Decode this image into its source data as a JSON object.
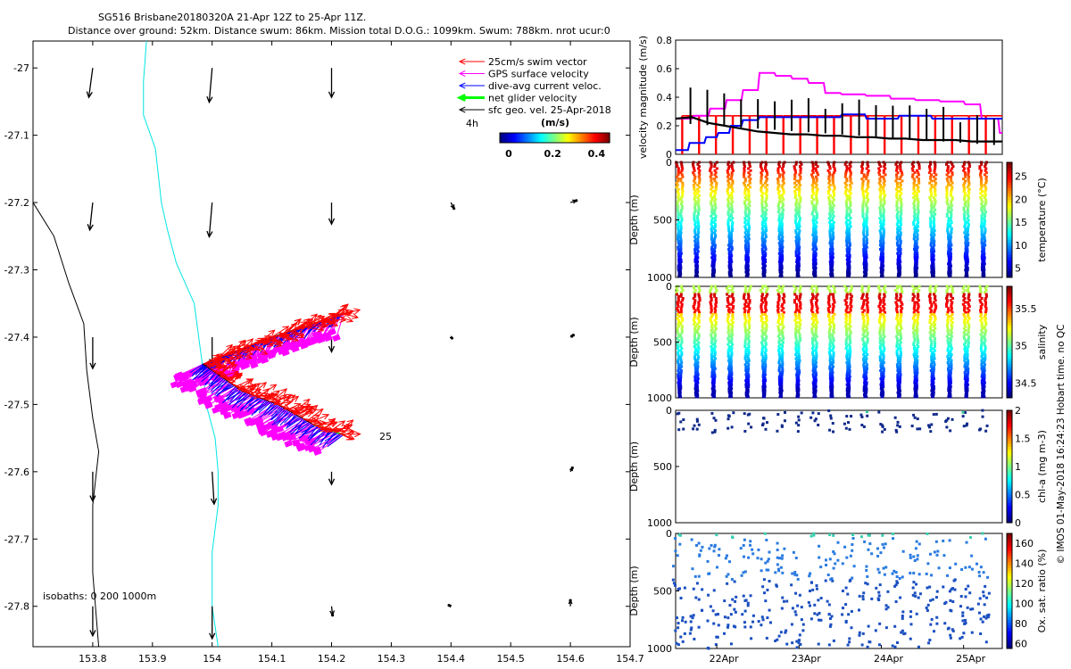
{
  "header": {
    "line1": "SG516 Brisbane20180320A 21-Apr 12Z to 25-Apr 11Z.",
    "line2": "Distance over ground: 52km. Distance swum: 86km. Mission total D.O.G.: 1099km. Swum: 788km. nrot ucur:0"
  },
  "side_note": "© IMOS 01-May-2018 16:24:23 Hobart time. no QC",
  "colors": {
    "swim": "#ff0000",
    "gps": "#ff00ff",
    "dive_avg": "#0000ff",
    "net": "#00ff00",
    "sfc": "#000000",
    "isobath_200": "#00e5e5",
    "isobath_1000": "#000000"
  },
  "chart_data": [
    {
      "id": "map",
      "type": "scatter",
      "xlim": [
        153.7,
        154.7
      ],
      "ylim": [
        -27.86,
        -26.96
      ],
      "xticks": [
        153.8,
        153.9,
        154,
        154.1,
        154.2,
        154.3,
        154.4,
        154.5,
        154.6,
        154.7
      ],
      "xtick_labels": [
        "153.8",
        "153.9",
        "154",
        "154.1",
        "154.2",
        "154.3",
        "154.4",
        "154.5",
        "154.6",
        "154.7"
      ],
      "yticks": [
        -27,
        -27.1,
        -27.2,
        -27.3,
        -27.4,
        -27.5,
        -27.6,
        -27.7,
        -27.8
      ],
      "ytick_labels": [
        "-27",
        "-27.1",
        "-27.2",
        "-27.3",
        "-27.4",
        "-27.5",
        "-27.6",
        "-27.7",
        "-27.8"
      ],
      "legend": {
        "items": [
          "25cm/s swim vector",
          "GPS surface velocity",
          "dive-avg current veloc.",
          "net glider velocity",
          "sfc geo. vel. 25-Apr-2018"
        ],
        "sub_label": "4h",
        "colorbar_title": "(m/s)",
        "colorbar_ticks": [
          0,
          0.2,
          0.4
        ],
        "colorbar_labels": [
          "0",
          "0.2",
          "0.4"
        ],
        "colorbar_range": [
          0,
          0.5
        ]
      },
      "isobaths_label": "isobaths: 0   200  1000m",
      "annotation": "25",
      "track": [
        [
          154.22,
          -27.365
        ],
        [
          154.1,
          -27.4
        ],
        [
          153.985,
          -27.44
        ],
        [
          154.05,
          -27.48
        ],
        [
          154.11,
          -27.5
        ],
        [
          154.17,
          -27.53
        ],
        [
          154.22,
          -27.545
        ]
      ],
      "isobath_200": [
        [
          153.89,
          -26.96
        ],
        [
          153.885,
          -27.02
        ],
        [
          153.885,
          -27.07
        ],
        [
          153.905,
          -27.12
        ],
        [
          153.915,
          -27.2
        ],
        [
          153.925,
          -27.24
        ],
        [
          153.94,
          -27.29
        ],
        [
          153.97,
          -27.35
        ],
        [
          153.985,
          -27.45
        ],
        [
          153.99,
          -27.5
        ],
        [
          154.005,
          -27.55
        ],
        [
          154.01,
          -27.6
        ],
        [
          154.01,
          -27.65
        ],
        [
          154.0,
          -27.72
        ],
        [
          154.0,
          -27.8
        ],
        [
          154.01,
          -27.86
        ]
      ],
      "isobath_1000": [
        [
          153.7,
          -27.2
        ],
        [
          153.735,
          -27.25
        ],
        [
          153.76,
          -27.32
        ],
        [
          153.785,
          -27.38
        ],
        [
          153.79,
          -27.45
        ],
        [
          153.8,
          -27.52
        ],
        [
          153.81,
          -27.57
        ],
        [
          153.8,
          -27.65
        ],
        [
          153.8,
          -27.75
        ],
        [
          153.81,
          -27.86
        ]
      ],
      "geo_vectors": [
        {
          "lon": 153.8,
          "lat": -27.0,
          "u": -0.04,
          "v": -0.3
        },
        {
          "lon": 154.0,
          "lat": -27.0,
          "u": -0.03,
          "v": -0.35
        },
        {
          "lon": 154.2,
          "lat": -27.0,
          "u": 0.0,
          "v": -0.3
        },
        {
          "lon": 153.8,
          "lat": -27.2,
          "u": -0.03,
          "v": -0.28
        },
        {
          "lon": 154.0,
          "lat": -27.2,
          "u": -0.03,
          "v": -0.35
        },
        {
          "lon": 154.2,
          "lat": -27.2,
          "u": 0.0,
          "v": -0.22
        },
        {
          "lon": 154.4,
          "lat": -27.2,
          "u": 0.03,
          "v": -0.06
        },
        {
          "lon": 154.6,
          "lat": -27.2,
          "u": 0.06,
          "v": 0.02
        },
        {
          "lon": 153.8,
          "lat": -27.4,
          "u": 0.0,
          "v": -0.32
        },
        {
          "lon": 154.0,
          "lat": -27.4,
          "u": 0.0,
          "v": -0.28
        },
        {
          "lon": 154.2,
          "lat": -27.4,
          "u": 0.0,
          "v": -0.15
        },
        {
          "lon": 154.4,
          "lat": -27.4,
          "u": 0.01,
          "v": -0.01
        },
        {
          "lon": 154.6,
          "lat": -27.4,
          "u": 0.03,
          "v": 0.02
        },
        {
          "lon": 153.8,
          "lat": -27.6,
          "u": 0.0,
          "v": -0.3
        },
        {
          "lon": 154.0,
          "lat": -27.6,
          "u": 0.02,
          "v": -0.33
        },
        {
          "lon": 154.2,
          "lat": -27.6,
          "u": 0.0,
          "v": -0.13
        },
        {
          "lon": 154.6,
          "lat": -27.6,
          "u": 0.02,
          "v": 0.04
        },
        {
          "lon": 153.8,
          "lat": -27.8,
          "u": 0.0,
          "v": -0.3
        },
        {
          "lon": 154.0,
          "lat": -27.8,
          "u": 0.0,
          "v": -0.33
        },
        {
          "lon": 154.2,
          "lat": -27.8,
          "u": 0.01,
          "v": -0.09
        },
        {
          "lon": 154.4,
          "lat": -27.8,
          "u": -0.02,
          "v": 0.01
        },
        {
          "lon": 154.6,
          "lat": -27.8,
          "u": 0.0,
          "v": 0.06
        }
      ]
    },
    {
      "id": "velocity",
      "type": "line",
      "ylabel": "velocity magnitude (m/s)",
      "ylim": [
        0,
        0.8
      ],
      "yticks": [
        0,
        0.2,
        0.4,
        0.6,
        0.8
      ],
      "ytick_labels": [
        "0",
        "0.2",
        "0.4",
        "0.6",
        "0.8"
      ],
      "xlim": [
        21.5,
        25.47
      ],
      "series": [
        {
          "color": "#ff00ff",
          "x": [
            21.5,
            21.7,
            21.72,
            21.9,
            21.92,
            22.1,
            22.12,
            22.3,
            22.32,
            22.5,
            22.52,
            22.7,
            22.72,
            22.9,
            22.92,
            23.1,
            23.12,
            23.3,
            23.32,
            23.5,
            23.52,
            23.8,
            23.82,
            24.1,
            24.12,
            24.4,
            24.42,
            24.7,
            24.72,
            25.0,
            25.02,
            25.2,
            25.22,
            25.42,
            25.44,
            25.47
          ],
          "y": [
            0.25,
            0.25,
            0.27,
            0.27,
            0.32,
            0.32,
            0.38,
            0.38,
            0.45,
            0.45,
            0.57,
            0.57,
            0.55,
            0.55,
            0.53,
            0.53,
            0.5,
            0.5,
            0.43,
            0.43,
            0.42,
            0.42,
            0.41,
            0.41,
            0.39,
            0.39,
            0.38,
            0.38,
            0.37,
            0.37,
            0.35,
            0.35,
            0.25,
            0.25,
            0.15,
            0.15
          ]
        },
        {
          "color": "#0000ff",
          "x": [
            21.5,
            21.65,
            21.67,
            21.85,
            21.87,
            22.0,
            22.02,
            22.15,
            22.17,
            22.3,
            22.32,
            22.5,
            22.52,
            23.5,
            23.52,
            23.8,
            23.82,
            24.2,
            24.22,
            24.6,
            24.62,
            25.47
          ],
          "y": [
            0.03,
            0.03,
            0.08,
            0.08,
            0.12,
            0.12,
            0.15,
            0.15,
            0.2,
            0.2,
            0.24,
            0.24,
            0.26,
            0.26,
            0.28,
            0.28,
            0.25,
            0.25,
            0.27,
            0.27,
            0.25,
            0.25
          ]
        },
        {
          "color": "#000000",
          "x": [
            21.5,
            21.7,
            21.9,
            22.1,
            22.3,
            22.5,
            22.7,
            22.9,
            23.1,
            23.3,
            23.5,
            23.7,
            23.9,
            24.1,
            24.3,
            24.5,
            24.7,
            24.9,
            25.1,
            25.3,
            25.47
          ],
          "y": [
            0.25,
            0.26,
            0.22,
            0.2,
            0.18,
            0.16,
            0.15,
            0.14,
            0.14,
            0.13,
            0.13,
            0.12,
            0.12,
            0.11,
            0.11,
            0.1,
            0.1,
            0.1,
            0.09,
            0.09,
            0.09
          ]
        }
      ],
      "note": "red dive spikes every ~0.2 day reach 0.27"
    },
    {
      "id": "temperature",
      "type": "scatter",
      "ylabel": "Depth (m)",
      "yticks": [
        0,
        500,
        1000
      ],
      "ytick_labels": [
        "0",
        "500",
        "1000"
      ],
      "ylim": [
        0,
        1000
      ],
      "cbar_label": "temperature (°C)",
      "cbar_ticks": [
        5,
        10,
        15,
        20,
        25
      ],
      "cbar_labels": [
        "5",
        "10",
        "15",
        "20",
        "25"
      ],
      "cbar_range": [
        3,
        28
      ]
    },
    {
      "id": "salinity",
      "type": "scatter",
      "ylabel": "Depth (m)",
      "yticks": [
        0,
        500,
        1000
      ],
      "ytick_labels": [
        "0",
        "500",
        "1000"
      ],
      "ylim": [
        0,
        1000
      ],
      "cbar_label": "salinity",
      "cbar_ticks": [
        34.5,
        35,
        35.5
      ],
      "cbar_labels": [
        "34.5",
        "35",
        "35.5"
      ],
      "cbar_range": [
        34.3,
        35.8
      ]
    },
    {
      "id": "chla",
      "type": "scatter",
      "ylabel": "Depth (m)",
      "yticks": [
        0,
        500,
        1000
      ],
      "ytick_labels": [
        "0",
        "500",
        "1000"
      ],
      "ylim": [
        0,
        1000
      ],
      "cbar_label": "chl-a (mg m-3)",
      "cbar_ticks": [
        0,
        0.5,
        1,
        1.5,
        2
      ],
      "cbar_labels": [
        "0",
        "0.5",
        "1",
        "1.5",
        "2"
      ],
      "cbar_range": [
        0,
        2
      ]
    },
    {
      "id": "oxygen",
      "type": "scatter",
      "ylabel": "Depth (m)",
      "yticks": [
        0,
        500,
        1000
      ],
      "ytick_labels": [
        "0",
        "500",
        "1000"
      ],
      "ylim": [
        0,
        1000
      ],
      "cbar_label": "Ox. sat. ratio (%)",
      "cbar_ticks": [
        60,
        80,
        100,
        120,
        140,
        160
      ],
      "cbar_labels": [
        "60",
        "80",
        "100",
        "120",
        "140",
        "160"
      ],
      "cbar_range": [
        55,
        170
      ],
      "xticks": [
        22,
        23,
        24,
        25
      ],
      "xtick_labels": [
        "22Apr",
        "23Apr",
        "24Apr",
        "25Apr"
      ]
    }
  ]
}
